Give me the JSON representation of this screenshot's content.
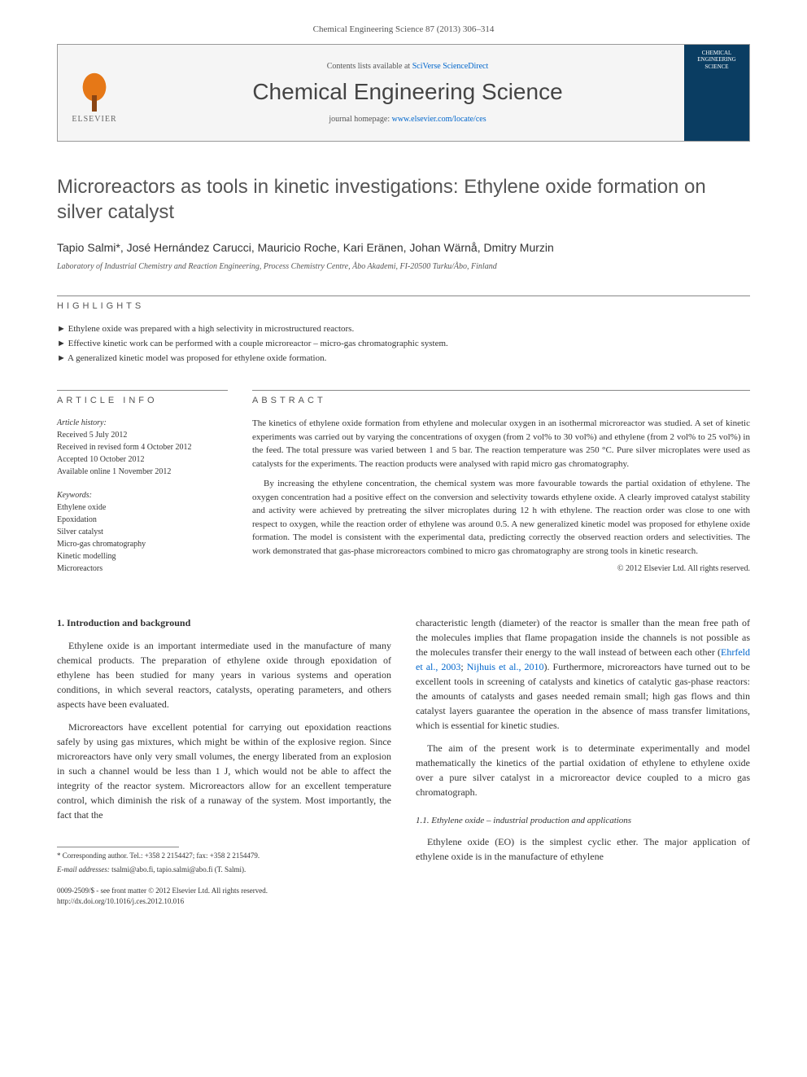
{
  "journal_ref": "Chemical Engineering Science 87 (2013) 306–314",
  "header": {
    "contents_prefix": "Contents lists available at ",
    "contents_link": "SciVerse ScienceDirect",
    "journal_name": "Chemical Engineering Science",
    "homepage_prefix": "journal homepage: ",
    "homepage_link": "www.elsevier.com/locate/ces",
    "elsevier_label": "ELSEVIER",
    "cover_text": "CHEMICAL ENGINEERING SCIENCE"
  },
  "title": "Microreactors as tools in kinetic investigations: Ethylene oxide formation on silver catalyst",
  "authors": "Tapio Salmi*, José Hernández Carucci, Mauricio Roche, Kari Eränen, Johan Wärnå, Dmitry Murzin",
  "affiliation": "Laboratory of Industrial Chemistry and Reaction Engineering, Process Chemistry Centre, Åbo Akademi, FI-20500 Turku/Åbo, Finland",
  "highlights_label": "HIGHLIGHTS",
  "highlights": [
    "Ethylene oxide was prepared with a high selectivity in microstructured reactors.",
    "Effective kinetic work can be performed with a couple microreactor – micro-gas chromatographic system.",
    "A generalized kinetic model was proposed for ethylene oxide formation."
  ],
  "article_info_label": "ARTICLE INFO",
  "abstract_label": "ABSTRACT",
  "history": {
    "label": "Article history:",
    "received": "Received 5 July 2012",
    "revised": "Received in revised form 4 October 2012",
    "accepted": "Accepted 10 October 2012",
    "online": "Available online 1 November 2012"
  },
  "keywords": {
    "label": "Keywords:",
    "items": [
      "Ethylene oxide",
      "Epoxidation",
      "Silver catalyst",
      "Micro-gas chromatography",
      "Kinetic modelling",
      "Microreactors"
    ]
  },
  "abstract": {
    "p1": "The kinetics of ethylene oxide formation from ethylene and molecular oxygen in an isothermal microreactor was studied. A set of kinetic experiments was carried out by varying the concentrations of oxygen (from 2 vol% to 30 vol%) and ethylene (from 2 vol% to 25 vol%) in the feed. The total pressure was varied between 1 and 5 bar. The reaction temperature was 250 °C. Pure silver microplates were used as catalysts for the experiments. The reaction products were analysed with rapid micro gas chromatography.",
    "p2": "By increasing the ethylene concentration, the chemical system was more favourable towards the partial oxidation of ethylene. The oxygen concentration had a positive effect on the conversion and selectivity towards ethylene oxide. A clearly improved catalyst stability and activity were achieved by pretreating the silver microplates during 12 h with ethylene. The reaction order was close to one with respect to oxygen, while the reaction order of ethylene was around 0.5. A new generalized kinetic model was proposed for ethylene oxide formation. The model is consistent with the experimental data, predicting correctly the observed reaction orders and selectivities. The work demonstrated that gas-phase microreactors combined to micro gas chromatography are strong tools in kinetic research.",
    "copyright": "© 2012 Elsevier Ltd. All rights reserved."
  },
  "body": {
    "heading1": "1. Introduction and background",
    "p1": "Ethylene oxide is an important intermediate used in the manufacture of many chemical products. The preparation of ethylene oxide through epoxidation of ethylene has been studied for many years in various systems and operation conditions, in which several reactors, catalysts, operating parameters, and others aspects have been evaluated.",
    "p2": "Microreactors have excellent potential for carrying out epoxidation reactions safely by using gas mixtures, which might be within of the explosive region. Since microreactors have only very small volumes, the energy liberated from an explosion in such a channel would be less than 1 J, which would not be able to affect the integrity of the reactor system. Microreactors allow for an excellent temperature control, which diminish the risk of a runaway of the system. Most importantly, the fact that the",
    "p3_pre": "characteristic length (diameter) of the reactor is smaller than the mean free path of the molecules implies that flame propagation inside the channels is not possible as the molecules transfer their energy to the wall instead of between each other (",
    "p3_ref1": "Ehrfeld et al., 2003",
    "p3_mid": "; ",
    "p3_ref2": "Nijhuis et al., 2010",
    "p3_post": "). Furthermore, microreactors have turned out to be excellent tools in screening of catalysts and kinetics of catalytic gas-phase reactors: the amounts of catalysts and gases needed remain small; high gas flows and thin catalyst layers guarantee the operation in the absence of mass transfer limitations, which is essential for kinetic studies.",
    "p4": "The aim of the present work is to determinate experimentally and model mathematically the kinetics of the partial oxidation of ethylene to ethylene oxide over a pure silver catalyst in a microreactor device coupled to a micro gas chromatograph.",
    "subheading": "1.1. Ethylene oxide – industrial production and applications",
    "p5": "Ethylene oxide (EO) is the simplest cyclic ether. The major application of ethylene oxide is in the manufacture of ethylene"
  },
  "footnote": {
    "corr": "* Corresponding author. Tel.: +358 2 2154427; fax: +358 2 2154479.",
    "email_label": "E-mail addresses: ",
    "emails": "tsalmi@abo.fi, tapio.salmi@abo.fi (T. Salmi)."
  },
  "bottom": {
    "line1": "0009-2509/$ - see front matter © 2012 Elsevier Ltd. All rights reserved.",
    "line2": "http://dx.doi.org/10.1016/j.ces.2012.10.016"
  }
}
